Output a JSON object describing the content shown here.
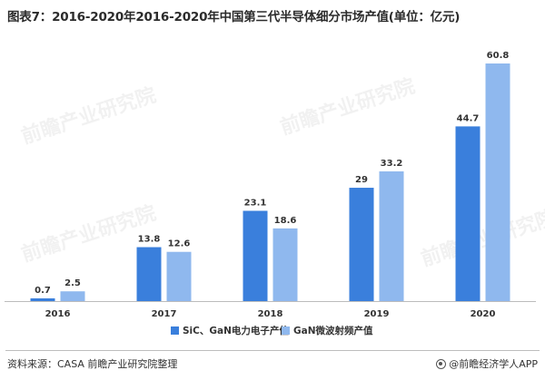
{
  "title": "图表7：2016-2020年2016-2020年中国第三代半导体细分市场产值(单位：亿元)",
  "watermark_text": "前瞻产业研究院",
  "colors": {
    "series1": "#3a7fdc",
    "series2": "#8fb8ee",
    "axis": "#bcbcbc"
  },
  "chart_data": {
    "type": "bar",
    "title": "图表7：2016-2020年2016-2020年中国第三代半导体细分市场产值(单位：亿元)",
    "categories": [
      "2016",
      "2017",
      "2018",
      "2019",
      "2020"
    ],
    "series": [
      {
        "name": "SiC、GaN电力电子产值",
        "values": [
          0.7,
          13.8,
          23.1,
          29,
          44.7
        ],
        "labels": [
          "0.7",
          "13.8",
          "23.1",
          "29",
          "44.7"
        ]
      },
      {
        "name": "GaN微波射频产值",
        "values": [
          2.5,
          12.6,
          18.6,
          33.2,
          60.8
        ],
        "labels": [
          "2.5",
          "12.6",
          "18.6",
          "33.2",
          "60.8"
        ]
      }
    ],
    "xlabel": "",
    "ylabel": "",
    "ylim": [
      0,
      65
    ],
    "grid": false,
    "legend_position": "bottom-center"
  },
  "footer": {
    "source": "资料来源：CASA 前瞻产业研究院整理",
    "brand": "@前瞻经济学人APP"
  }
}
